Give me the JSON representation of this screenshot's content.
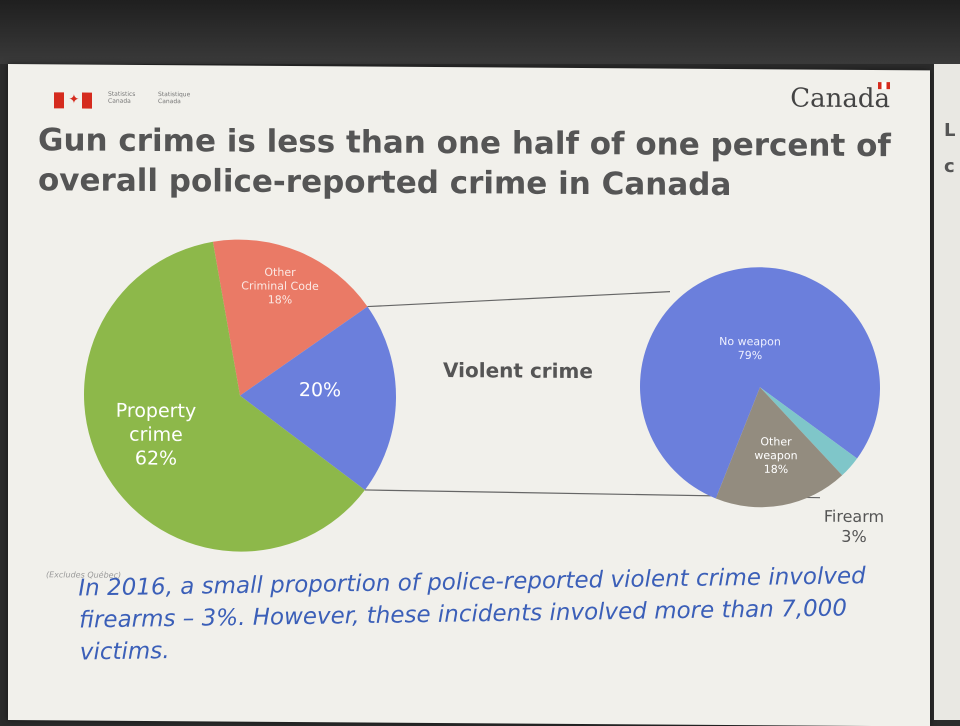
{
  "header": {
    "agency_en": "Statistics Canada",
    "agency_fr": "Statistique Canada",
    "wordmark": "Canada"
  },
  "title": "Gun crime is less than one half of one percent of overall police-reported crime in Canada",
  "colors": {
    "property": "#8db84a",
    "other_criminal": "#ea7a66",
    "violent": "#6b7fdc",
    "no_weapon": "#6b7fdc",
    "other_weapon": "#938c7f",
    "firearm": "#7fc6c9",
    "caption": "#3b5fb8"
  },
  "chart_data": [
    {
      "type": "pie",
      "slices": [
        {
          "label": "Property crime",
          "value": 62,
          "text": "62%",
          "lines": [
            "Property",
            "crime",
            "62%"
          ]
        },
        {
          "label": "Other Criminal Code",
          "value": 18,
          "text": "18%",
          "lines": [
            "Other",
            "Criminal Code",
            "18%"
          ]
        },
        {
          "label": "",
          "value": 20,
          "text": "20%",
          "lines": [
            "20%"
          ]
        }
      ]
    },
    {
      "type": "pie",
      "title": "Violent crime",
      "slices": [
        {
          "label": "No weapon",
          "value": 79,
          "text": "79%",
          "lines": [
            "No weapon",
            "79%"
          ]
        },
        {
          "label": "Other weapon",
          "value": 18,
          "text": "18%",
          "lines": [
            "Other",
            "weapon",
            "18%"
          ]
        },
        {
          "label": "Firearm",
          "value": 3,
          "text": "3%",
          "lines": [
            "Firearm",
            "3%"
          ]
        }
      ]
    }
  ],
  "footnote": "(Excludes Québec)",
  "caption": "In 2016, a small proportion of police-reported violent crime involved firearms – 3%. However, these incidents involved more than 7,000 victims."
}
